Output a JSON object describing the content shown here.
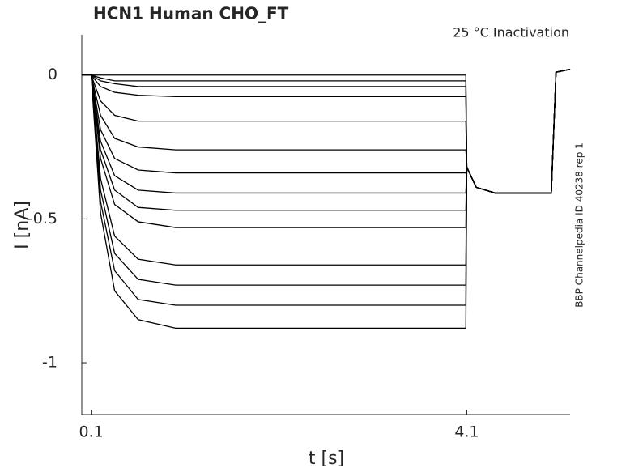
{
  "chart_data": {
    "type": "line",
    "title": "HCN1  Human  CHO_FT",
    "annotation": "25 °C  Inactivation",
    "side_note": "BBP Channelpedia ID 40238 rep 1",
    "x_label": "t [s]",
    "y_label": "I [nA]",
    "color": "#000000",
    "xlim": [
      0,
      5.2
    ],
    "xticks": [
      0.1,
      4.1
    ],
    "ylim": [
      -1.18,
      0.14
    ],
    "yticks": [
      0,
      -0.5,
      -1
    ],
    "x": [
      0,
      0.09,
      0.1,
      0.2,
      0.35,
      0.6,
      1,
      2,
      3,
      4.09,
      4.1,
      4.2,
      4.4,
      5.0,
      5.05,
      5.2
    ],
    "series": [
      {
        "values": [
          0,
          0,
          0,
          0,
          0,
          0,
          0,
          0,
          0,
          0,
          -0.32,
          -0.39,
          -0.41,
          -0.41,
          0.01,
          0.02
        ]
      },
      {
        "values": [
          0,
          0,
          0,
          -0.01,
          -0.02,
          -0.02,
          -0.02,
          -0.02,
          -0.02,
          -0.02,
          -0.32,
          -0.39,
          -0.41,
          -0.41,
          0.01,
          0.02
        ]
      },
      {
        "values": [
          0,
          0,
          0,
          -0.02,
          -0.03,
          -0.04,
          -0.04,
          -0.04,
          -0.04,
          -0.04,
          -0.32,
          -0.39,
          -0.41,
          -0.41,
          0.01,
          0.02
        ]
      },
      {
        "values": [
          0,
          0,
          0,
          -0.04,
          -0.06,
          -0.07,
          -0.075,
          -0.075,
          -0.075,
          -0.075,
          -0.32,
          -0.39,
          -0.41,
          -0.41,
          0.01,
          0.02
        ]
      },
      {
        "values": [
          0,
          0,
          0,
          -0.09,
          -0.14,
          -0.16,
          -0.16,
          -0.16,
          -0.16,
          -0.16,
          -0.32,
          -0.39,
          -0.41,
          -0.41,
          0.01,
          0.02
        ]
      },
      {
        "values": [
          0,
          0,
          0,
          -0.14,
          -0.22,
          -0.25,
          -0.26,
          -0.26,
          -0.26,
          -0.26,
          -0.32,
          -0.39,
          -0.41,
          -0.41,
          0.01,
          0.02
        ]
      },
      {
        "values": [
          0,
          0,
          0,
          -0.19,
          -0.29,
          -0.33,
          -0.34,
          -0.34,
          -0.34,
          -0.34,
          -0.32,
          -0.39,
          -0.41,
          -0.41,
          0.01,
          0.02
        ]
      },
      {
        "values": [
          0,
          0,
          0,
          -0.23,
          -0.35,
          -0.4,
          -0.41,
          -0.41,
          -0.41,
          -0.41,
          -0.32,
          -0.39,
          -0.41,
          -0.41,
          0.01,
          0.02
        ]
      },
      {
        "values": [
          0,
          0,
          0,
          -0.26,
          -0.4,
          -0.46,
          -0.47,
          -0.47,
          -0.47,
          -0.47,
          -0.32,
          -0.39,
          -0.41,
          -0.41,
          0.01,
          0.02
        ]
      },
      {
        "values": [
          0,
          0,
          0,
          -0.29,
          -0.45,
          -0.51,
          -0.53,
          -0.53,
          -0.53,
          -0.53,
          -0.32,
          -0.39,
          -0.41,
          -0.41,
          0.01,
          0.02
        ]
      },
      {
        "values": [
          0,
          0,
          0,
          -0.36,
          -0.56,
          -0.64,
          -0.66,
          -0.66,
          -0.66,
          -0.66,
          -0.32,
          -0.39,
          -0.41,
          -0.41,
          0.01,
          0.02
        ]
      },
      {
        "values": [
          0,
          0,
          0,
          -0.4,
          -0.62,
          -0.71,
          -0.73,
          -0.73,
          -0.73,
          -0.73,
          -0.32,
          -0.39,
          -0.41,
          -0.41,
          0.01,
          0.02
        ]
      },
      {
        "values": [
          0,
          0,
          0,
          -0.44,
          -0.68,
          -0.78,
          -0.8,
          -0.8,
          -0.8,
          -0.8,
          -0.32,
          -0.39,
          -0.41,
          -0.41,
          0.01,
          0.02
        ]
      },
      {
        "values": [
          0,
          0,
          0,
          -0.48,
          -0.75,
          -0.85,
          -0.88,
          -0.88,
          -0.88,
          -0.88,
          -0.32,
          -0.39,
          -0.41,
          -0.41,
          0.01,
          0.02
        ]
      }
    ]
  }
}
